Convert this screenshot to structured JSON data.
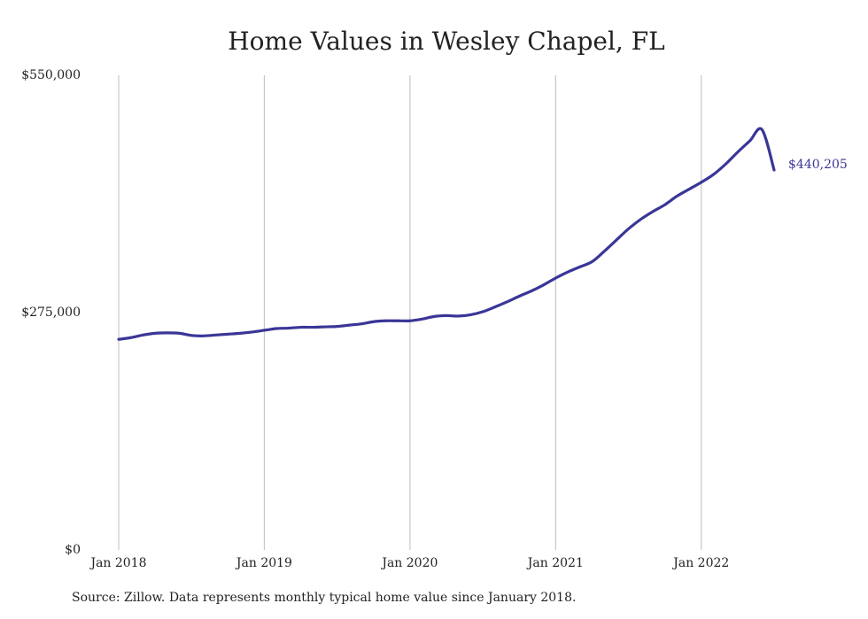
{
  "chart_data": {
    "type": "line",
    "title": "Home Values in Wesley Chapel, FL",
    "source": "Source: Zillow. Data represents monthly typical home value since January 2018.",
    "xlabel": "",
    "ylabel": "",
    "ylim": [
      0,
      550000
    ],
    "yticks": [
      {
        "value": 0,
        "label": "$0"
      },
      {
        "value": 275000,
        "label": "$275,000"
      },
      {
        "value": 550000,
        "label": "$550,000"
      }
    ],
    "xticks": [
      {
        "value": 0,
        "label": "Jan 2018"
      },
      {
        "value": 12,
        "label": "Jan 2019"
      },
      {
        "value": 24,
        "label": "Jan 2020"
      },
      {
        "value": 36,
        "label": "Jan 2021"
      },
      {
        "value": 48,
        "label": "Jan 2022"
      }
    ],
    "xlim": [
      0,
      54
    ],
    "grid": "vertical",
    "line_color": "#3a3697",
    "end_label": "$440,205",
    "series": [
      {
        "x": [
          0,
          1,
          2,
          3,
          4,
          5,
          6,
          7,
          8,
          9,
          10,
          11,
          12,
          13,
          14,
          15,
          16,
          17,
          18,
          19,
          20,
          21,
          22,
          23,
          24,
          25,
          26,
          27,
          28,
          29,
          30,
          31,
          32,
          33,
          34,
          35,
          36,
          37,
          38,
          39,
          40,
          41,
          42,
          43,
          44,
          45,
          46,
          47,
          48,
          49,
          50,
          51,
          52,
          53,
          54
        ],
        "values": [
          244000,
          246000,
          249000,
          251000,
          251500,
          251000,
          248500,
          248000,
          249000,
          250000,
          251000,
          252500,
          254500,
          256500,
          257000,
          258000,
          258000,
          258500,
          259000,
          260500,
          262000,
          264500,
          265500,
          265500,
          265500,
          267500,
          270500,
          271500,
          271000,
          272500,
          276000,
          281500,
          287500,
          294000,
          300000,
          307000,
          315000,
          322000,
          328000,
          334000,
          346000,
          359000,
          372000,
          383000,
          392000,
          400000,
          410000,
          418000,
          426000,
          435000,
          447000,
          461000,
          474000,
          487000,
          440205
        ]
      }
    ]
  }
}
